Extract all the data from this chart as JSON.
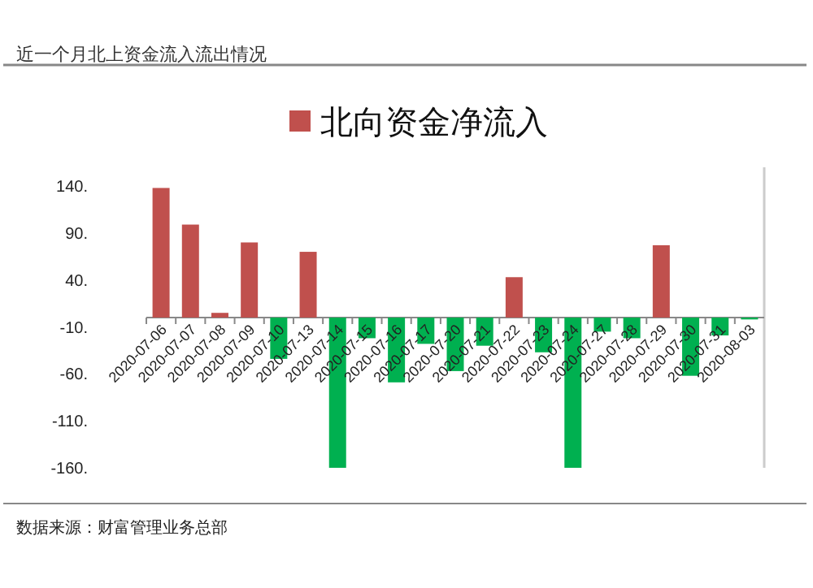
{
  "chart_data": {
    "type": "bar",
    "title": "近一个月北上资金流入流出情况",
    "annotations": [
      "数据来源：财富管理业务总部"
    ],
    "categories": [
      "2020-07-06",
      "2020-07-07",
      "2020-07-08",
      "2020-07-09",
      "2020-07-10",
      "2020-07-13",
      "2020-07-14",
      "2020-07-15",
      "2020-07-16",
      "2020-07-17",
      "2020-07-20",
      "2020-07-21",
      "2020-07-22",
      "2020-07-23",
      "2020-07-24",
      "2020-07-27",
      "2020-07-28",
      "2020-07-29",
      "2020-07-30",
      "2020-07-31",
      "2020-08-03"
    ],
    "series": [
      {
        "name": "北向资金净流入",
        "color": "#c0504d",
        "values": [
          138,
          99,
          5,
          80,
          -44,
          70,
          -160,
          -22,
          -69,
          -28,
          -57,
          -30,
          43,
          -37,
          -160,
          -15,
          -22,
          77,
          -62,
          -19,
          -2
        ],
        "colors": [
          "#c0504d",
          "#c0504d",
          "#c0504d",
          "#c0504d",
          "#00b050",
          "#c0504d",
          "#00b050",
          "#00b050",
          "#00b050",
          "#00b050",
          "#00b050",
          "#00b050",
          "#c0504d",
          "#00b050",
          "#00b050",
          "#00b050",
          "#00b050",
          "#c0504d",
          "#00b050",
          "#00b050",
          "#00b050"
        ]
      }
    ],
    "ylim": [
      -160,
      160
    ],
    "yticks": [
      {
        "value": 140,
        "label": "140."
      },
      {
        "value": 90,
        "label": "90."
      },
      {
        "value": 40,
        "label": "40."
      },
      {
        "value": -10,
        "label": "-10."
      },
      {
        "value": -60,
        "label": "-60."
      },
      {
        "value": -110,
        "label": "-110."
      },
      {
        "value": -160,
        "label": "-160."
      }
    ],
    "grid": false,
    "legend": "top"
  }
}
